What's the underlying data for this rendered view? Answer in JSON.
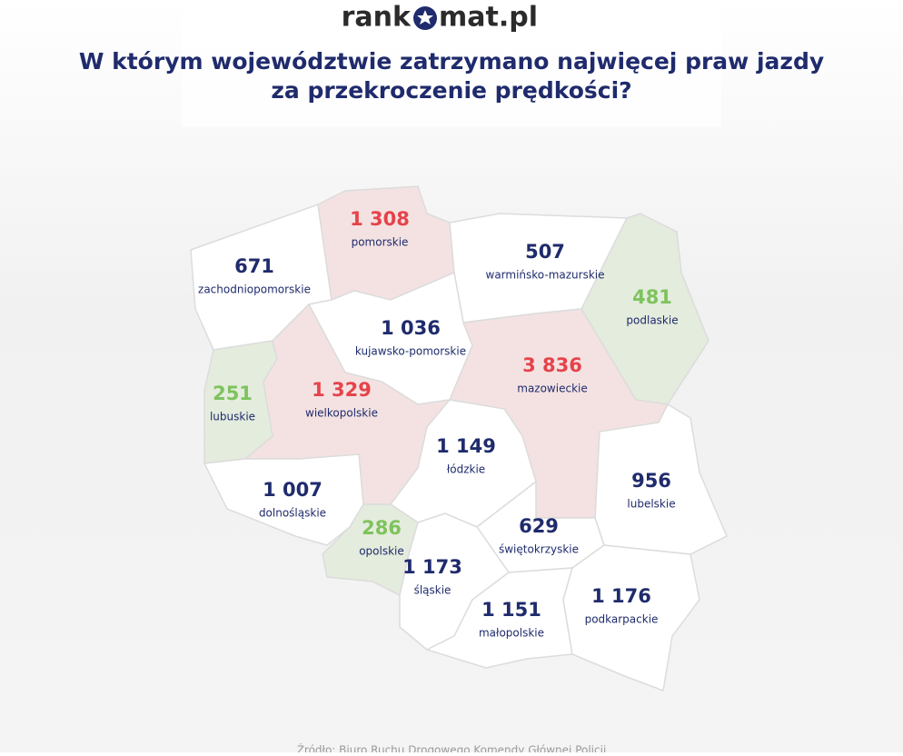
{
  "logo": {
    "before": "rank",
    "after": "mat.pl"
  },
  "title": [
    "W którym województwie zatrzymano najwięcej praw jazdy",
    "za przekroczenie prędkości?"
  ],
  "source": "Źródło: Biuro Ruchu Drogowego Komendy Głównej Policji",
  "colors": {
    "high": "#e5434b",
    "low": "#7ec35d",
    "normal": "#1f2b6c",
    "high_fill": "#f4e2e2",
    "low_fill": "#e4ecdd",
    "normal_fill": "#ffffff"
  },
  "regions": [
    {
      "name": "zachodniopomorskie",
      "value": 671,
      "level": "normal"
    },
    {
      "name": "pomorskie",
      "value": 1308,
      "value_label": "1 308",
      "level": "high"
    },
    {
      "name": "warmińsko-mazurskie",
      "value": 507,
      "level": "normal"
    },
    {
      "name": "podlaskie",
      "value": 481,
      "level": "low"
    },
    {
      "name": "kujawsko-pomorskie",
      "value": 1036,
      "value_label": "1 036",
      "level": "normal"
    },
    {
      "name": "mazowieckie",
      "value": 3836,
      "value_label": "3 836",
      "level": "high"
    },
    {
      "name": "lubuskie",
      "value": 251,
      "level": "low"
    },
    {
      "name": "wielkopolskie",
      "value": 1329,
      "value_label": "1 329",
      "level": "high"
    },
    {
      "name": "łódzkie",
      "value": 1149,
      "value_label": "1 149",
      "level": "normal"
    },
    {
      "name": "dolnośląskie",
      "value": 1007,
      "value_label": "1 007",
      "level": "normal"
    },
    {
      "name": "lubelskie",
      "value": 956,
      "level": "normal"
    },
    {
      "name": "opolskie",
      "value": 286,
      "level": "low"
    },
    {
      "name": "świętokrzyskie",
      "value": 629,
      "level": "normal"
    },
    {
      "name": "śląskie",
      "value": 1173,
      "value_label": "1 173",
      "level": "normal"
    },
    {
      "name": "małopolskie",
      "value": 1151,
      "value_label": "1 151",
      "level": "normal"
    },
    {
      "name": "podkarpackie",
      "value": 1176,
      "value_label": "1 176",
      "level": "normal"
    }
  ]
}
